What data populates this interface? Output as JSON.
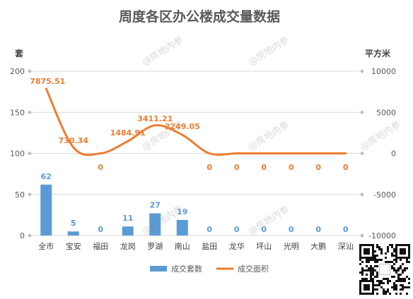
{
  "chart_data": {
    "type": "bar",
    "title": "周度各区办公楼成交量数据",
    "categories": [
      "全市",
      "宝安",
      "福田",
      "龙岗",
      "罗湖",
      "南山",
      "盐田",
      "龙华",
      "坪山",
      "光明",
      "大鹏",
      "深汕"
    ],
    "series": [
      {
        "name": "成交套数",
        "type": "bar",
        "axis": "left",
        "color": "#5b9bd5",
        "values": [
          62,
          5,
          0,
          11,
          27,
          19,
          0,
          0,
          0,
          0,
          0,
          0
        ],
        "labels": [
          "62",
          "5",
          "0",
          "11",
          "27",
          "19",
          "0",
          "0",
          "0",
          "0",
          "0",
          "0"
        ]
      },
      {
        "name": "成交面积",
        "type": "line",
        "axis": "right",
        "color": "#ed7d31",
        "smooth": true,
        "values": [
          7875.51,
          730.34,
          0,
          1484.91,
          3411.21,
          2249.05,
          0,
          0,
          0,
          0,
          0,
          0
        ],
        "labels": [
          "7875.51",
          "730.34",
          "0",
          "1484.91",
          "3411.21",
          "2249.05",
          "0",
          "0",
          "0",
          "0",
          "0",
          "0"
        ]
      }
    ],
    "y_left": {
      "label": "套",
      "min": 0,
      "max": 200,
      "ticks": [
        "0",
        "50",
        "100",
        "150",
        "200"
      ]
    },
    "y_right": {
      "label": "平方米",
      "min": -10000,
      "max": 10000,
      "ticks": [
        "-10000",
        "-5000",
        "0",
        "5000",
        "10000"
      ]
    },
    "grid": true,
    "legend_position": "bottom"
  },
  "watermark": "@房地内参",
  "qr_icon": "qr-code-icon"
}
